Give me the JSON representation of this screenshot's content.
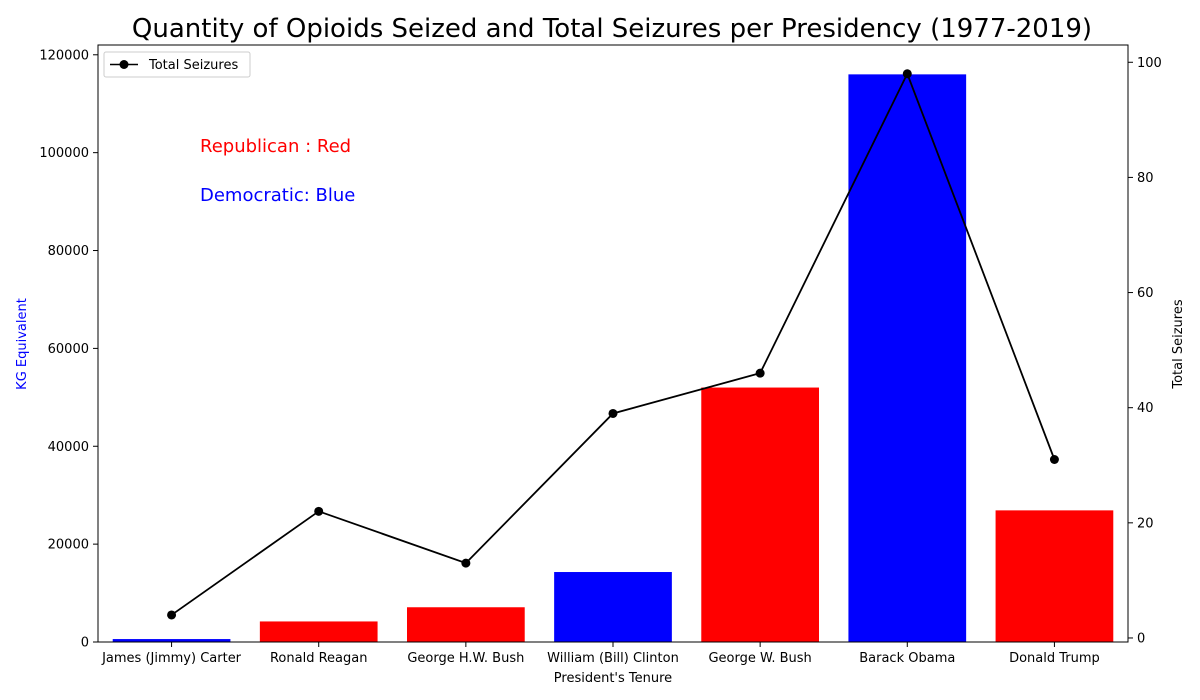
{
  "chart_data": {
    "type": "bar",
    "title": "Quantity of Opioids Seized and Total Seizures per Presidency (1977-2019)",
    "xlabel": "President's Tenure",
    "ylabel": "KG Equivalent",
    "ylabel_color": "#0000ff",
    "y2label": "Total Seizures",
    "ylim": [
      0,
      122000
    ],
    "y2lim": [
      -0.7,
      103
    ],
    "yticks": [
      0,
      20000,
      40000,
      60000,
      80000,
      100000,
      120000
    ],
    "y2ticks": [
      0,
      20,
      40,
      60,
      80,
      100
    ],
    "categories": [
      "James (Jimmy) Carter",
      "Ronald Reagan",
      "George H.W. Bush",
      "William (Bill) Clinton",
      "George W. Bush",
      "Barack Obama",
      "Donald Trump"
    ],
    "series": [
      {
        "kind": "bar",
        "axis": "left",
        "values": [
          600,
          4200,
          7100,
          14300,
          52000,
          116000,
          26900
        ],
        "colors": [
          "#0000ff",
          "#ff0000",
          "#ff0000",
          "#0000ff",
          "#ff0000",
          "#0000ff",
          "#ff0000"
        ]
      },
      {
        "kind": "line",
        "name": "Total Seizures",
        "axis": "right",
        "color": "#000000",
        "values": [
          4,
          22,
          13,
          39,
          46,
          98,
          31
        ]
      }
    ],
    "legend": {
      "placement": "top-left",
      "entries": [
        "Total Seizures"
      ]
    },
    "annotations": [
      {
        "text": "Republican : Red",
        "color": "#ff0000"
      },
      {
        "text": "Democratic: Blue",
        "color": "#0000ff"
      }
    ],
    "grid": false
  }
}
